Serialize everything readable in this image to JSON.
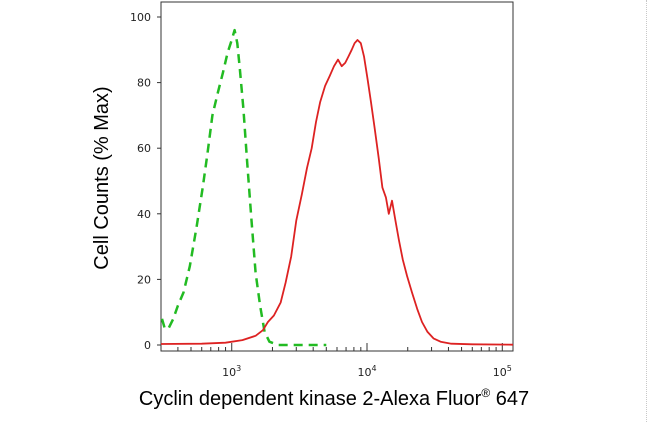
{
  "chart_data": {
    "type": "line",
    "xlabel": "Cyclin dependent kinase 2-Alexa Fluor",
    "xlabel_sup": "®",
    "xlabel_tail": " 647",
    "ylabel": "Cell Counts (% Max)",
    "x_scale": "log",
    "xlim": [
      300,
      120000
    ],
    "ylim": [
      0,
      100
    ],
    "y_ticks": [
      0,
      20,
      40,
      60,
      80,
      100
    ],
    "x_ticks": [
      {
        "value": 1000,
        "base": "10",
        "exp": "3"
      },
      {
        "value": 10000,
        "base": "10",
        "exp": "4"
      },
      {
        "value": 100000,
        "base": "10",
        "exp": "5"
      }
    ],
    "grid": false,
    "legend": "none",
    "series": [
      {
        "color": "#22bb22",
        "style": "dashed",
        "points": [
          [
            305,
            8
          ],
          [
            320,
            5
          ],
          [
            340,
            5
          ],
          [
            370,
            8
          ],
          [
            400,
            12
          ],
          [
            440,
            16
          ],
          [
            490,
            24
          ],
          [
            550,
            36
          ],
          [
            610,
            48
          ],
          [
            660,
            58
          ],
          [
            720,
            70
          ],
          [
            790,
            77
          ],
          [
            860,
            83
          ],
          [
            930,
            89
          ],
          [
            1000,
            93
          ],
          [
            1050,
            96
          ],
          [
            1100,
            92
          ],
          [
            1150,
            84
          ],
          [
            1220,
            72
          ],
          [
            1300,
            56
          ],
          [
            1400,
            38
          ],
          [
            1500,
            22
          ],
          [
            1620,
            12
          ],
          [
            1750,
            4
          ],
          [
            1900,
            1
          ],
          [
            2200,
            0
          ],
          [
            3000,
            0
          ],
          [
            5000,
            0
          ]
        ]
      },
      {
        "color": "#dd2222",
        "style": "solid",
        "points": [
          [
            300,
            0.3
          ],
          [
            600,
            0.4
          ],
          [
            900,
            0.7
          ],
          [
            1200,
            1.5
          ],
          [
            1500,
            2.8
          ],
          [
            1700,
            4.5
          ],
          [
            1850,
            7
          ],
          [
            2050,
            9
          ],
          [
            2300,
            13
          ],
          [
            2500,
            19
          ],
          [
            2750,
            27
          ],
          [
            3000,
            38
          ],
          [
            3300,
            46
          ],
          [
            3600,
            54
          ],
          [
            3900,
            60
          ],
          [
            4200,
            68
          ],
          [
            4500,
            74
          ],
          [
            4900,
            79
          ],
          [
            5300,
            82
          ],
          [
            5700,
            85
          ],
          [
            6100,
            87
          ],
          [
            6500,
            85
          ],
          [
            6900,
            86
          ],
          [
            7300,
            88
          ],
          [
            7700,
            90
          ],
          [
            8100,
            92
          ],
          [
            8500,
            93
          ],
          [
            9000,
            92
          ],
          [
            9500,
            88
          ],
          [
            10100,
            81
          ],
          [
            10700,
            74
          ],
          [
            11400,
            66
          ],
          [
            12200,
            57
          ],
          [
            13000,
            48
          ],
          [
            13800,
            45
          ],
          [
            14500,
            40
          ],
          [
            15300,
            44
          ],
          [
            16200,
            38
          ],
          [
            17200,
            32
          ],
          [
            18400,
            26
          ],
          [
            19800,
            21
          ],
          [
            21500,
            16
          ],
          [
            23500,
            11
          ],
          [
            25500,
            7
          ],
          [
            28000,
            4
          ],
          [
            31000,
            2
          ],
          [
            35000,
            1
          ],
          [
            42000,
            0.4
          ],
          [
            60000,
            0.2
          ],
          [
            120000,
            0.1
          ]
        ]
      }
    ]
  }
}
